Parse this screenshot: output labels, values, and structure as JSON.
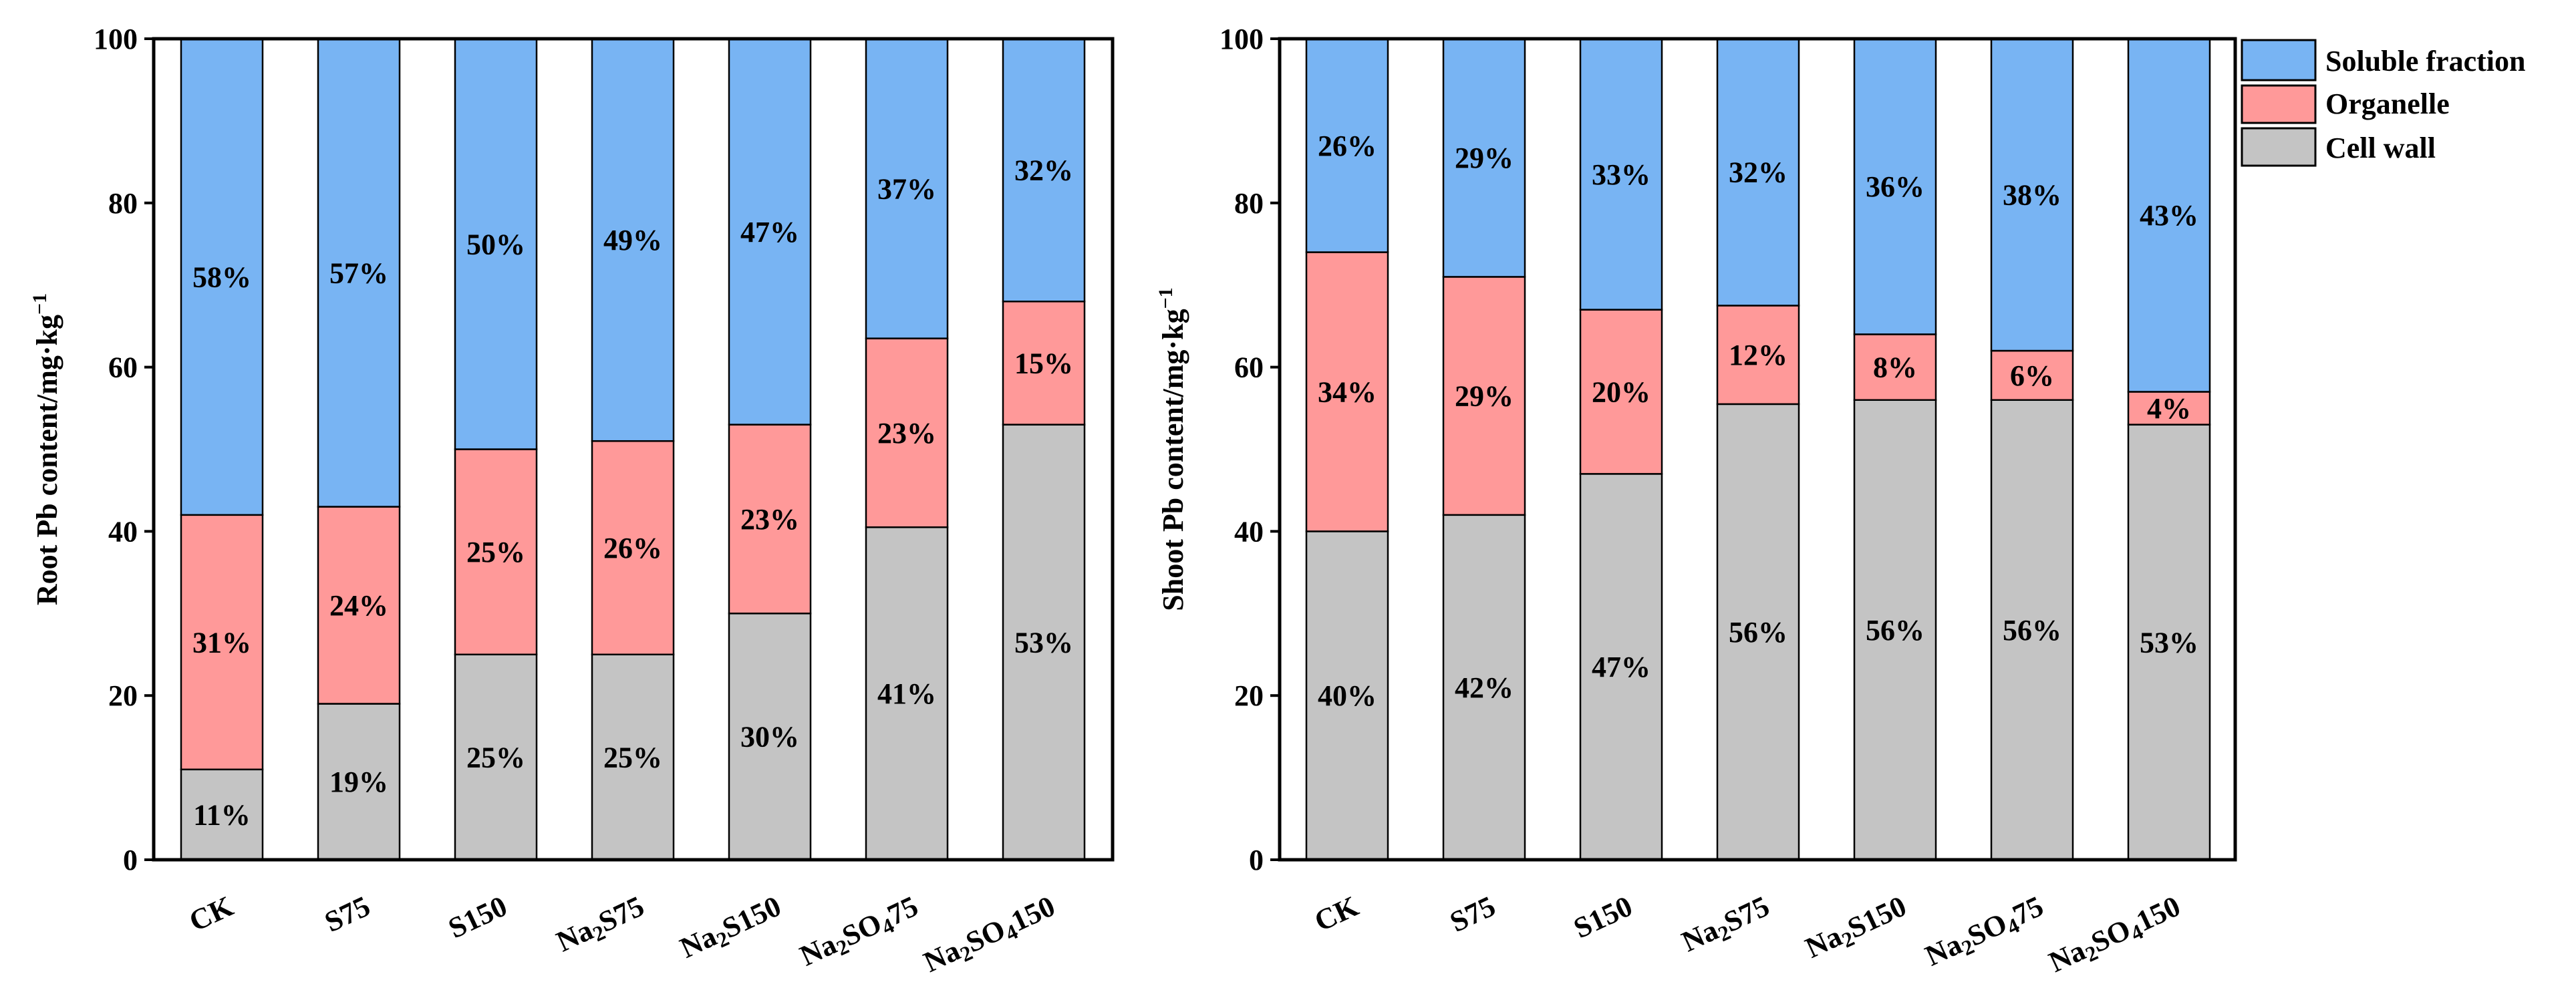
{
  "colors": {
    "cell_wall": "#c4c4c4",
    "organelle": "#ff9999",
    "soluble": "#78b4f3"
  },
  "legend": {
    "items": [
      {
        "key": "soluble",
        "label": "Soluble fraction"
      },
      {
        "key": "organelle",
        "label": "Organelle"
      },
      {
        "key": "cell_wall",
        "label": "Cell wall"
      }
    ]
  },
  "chart_data": [
    {
      "type": "bar",
      "stacked": true,
      "title": "",
      "ylabel": "Root Pb content/mg·kg",
      "ylabel_sup": "−1",
      "ylim": [
        0,
        100
      ],
      "yticks": [
        0,
        20,
        40,
        60,
        80,
        100
      ],
      "categories": [
        {
          "main": "CK"
        },
        {
          "main": "S75"
        },
        {
          "main": "S150"
        },
        {
          "main": "Na",
          "sub": "2",
          "rest": "S75"
        },
        {
          "main": "Na",
          "sub": "2",
          "rest": "S150"
        },
        {
          "main": "Na",
          "sub": "2",
          "rest": "SO",
          "sub2": "4",
          "rest2": "75"
        },
        {
          "main": "Na",
          "sub": "2",
          "rest": "SO",
          "sub2": "4",
          "rest2": "150"
        }
      ],
      "series": [
        {
          "name": "Cell wall",
          "key": "cell_wall",
          "values": [
            11,
            19,
            25,
            25,
            30,
            40.5,
            53
          ],
          "labels": [
            "11%",
            "19%",
            "25%",
            "25%",
            "30%",
            "41%",
            "53%"
          ]
        },
        {
          "name": "Organelle",
          "key": "organelle",
          "values": [
            31,
            24,
            25,
            26,
            23,
            23,
            15
          ],
          "labels": [
            "31%",
            "24%",
            "25%",
            "26%",
            "23%",
            "23%",
            "15%"
          ]
        },
        {
          "name": "Soluble fraction",
          "key": "soluble",
          "values": [
            58,
            57,
            50,
            49,
            47,
            36.5,
            32
          ],
          "labels": [
            "58%",
            "57%",
            "50%",
            "49%",
            "47%",
            "37%",
            "32%"
          ]
        }
      ]
    },
    {
      "type": "bar",
      "stacked": true,
      "title": "",
      "ylabel": "Shoot Pb content/mg·kg",
      "ylabel_sup": "−1",
      "ylim": [
        0,
        100
      ],
      "yticks": [
        0,
        20,
        40,
        60,
        80,
        100
      ],
      "categories": [
        {
          "main": "CK"
        },
        {
          "main": "S75"
        },
        {
          "main": "S150"
        },
        {
          "main": "Na",
          "sub": "2",
          "rest": "S75"
        },
        {
          "main": "Na",
          "sub": "2",
          "rest": "S150"
        },
        {
          "main": "Na",
          "sub": "2",
          "rest": "SO",
          "sub2": "4",
          "rest2": "75"
        },
        {
          "main": "Na",
          "sub": "2",
          "rest": "SO",
          "sub2": "4",
          "rest2": "150"
        }
      ],
      "series": [
        {
          "name": "Cell wall",
          "key": "cell_wall",
          "values": [
            40,
            42,
            47,
            55.5,
            56,
            56,
            53
          ],
          "labels": [
            "40%",
            "42%",
            "47%",
            "56%",
            "56%",
            "56%",
            "53%"
          ]
        },
        {
          "name": "Organelle",
          "key": "organelle",
          "values": [
            34,
            29,
            20,
            12,
            8,
            6,
            4
          ],
          "labels": [
            "34%",
            "29%",
            "20%",
            "12%",
            "8%",
            "6%",
            "4%"
          ]
        },
        {
          "name": "Soluble fraction",
          "key": "soluble",
          "values": [
            26,
            29,
            33,
            32.5,
            36,
            38,
            43
          ],
          "labels": [
            "26%",
            "29%",
            "33%",
            "32%",
            "36%",
            "38%",
            "43%"
          ]
        }
      ]
    }
  ]
}
